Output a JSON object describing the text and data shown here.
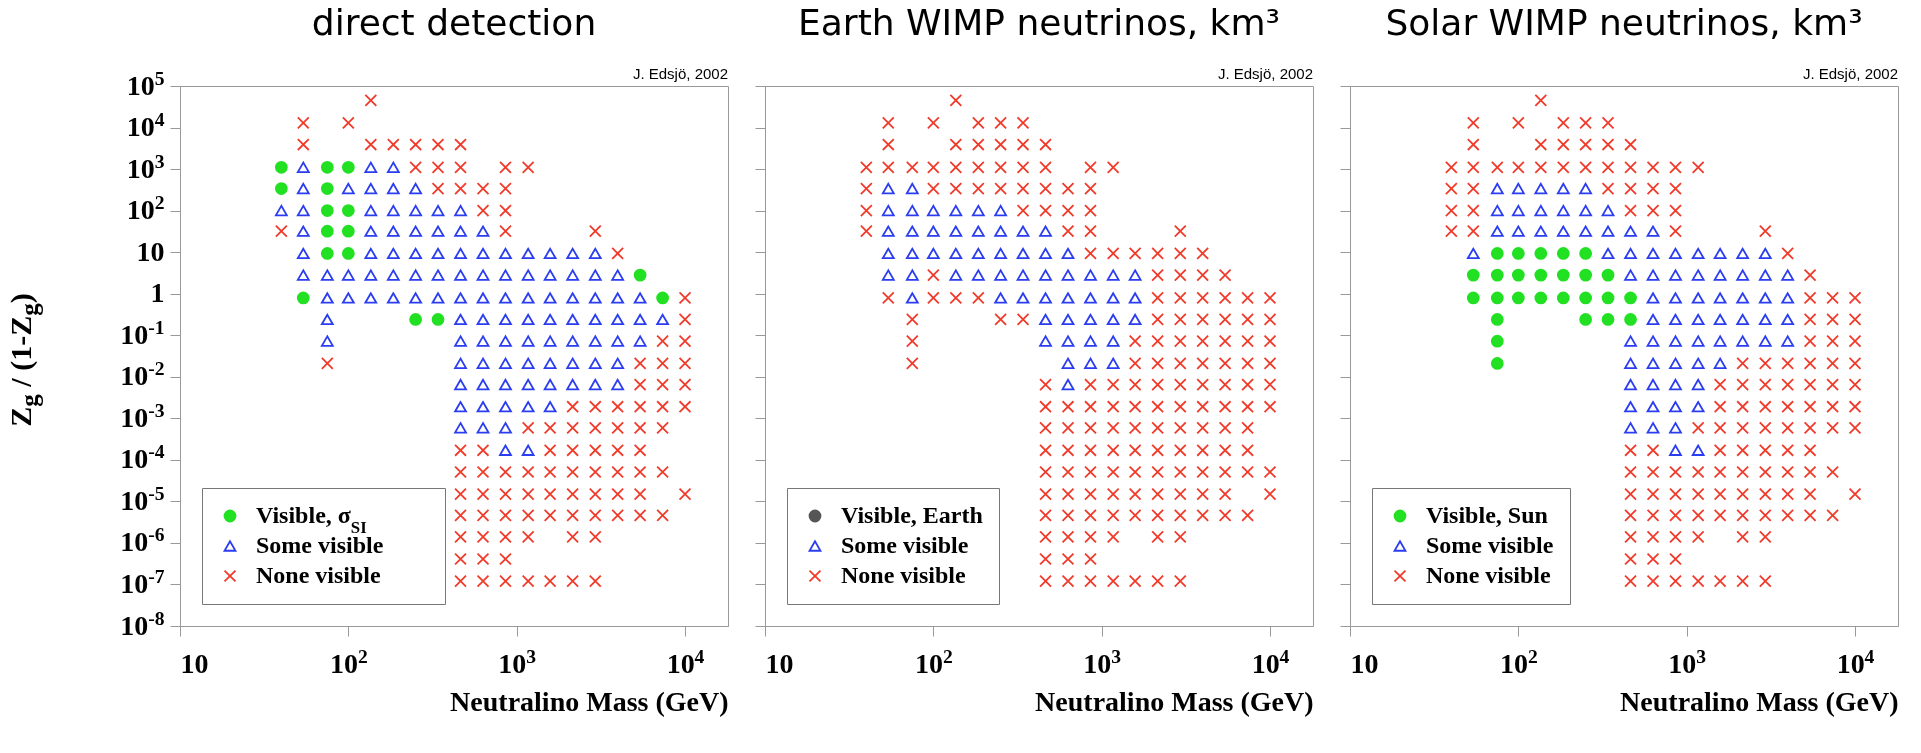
{
  "chart_data": [
    {
      "type": "scatter",
      "title": "direct detection",
      "xlabel": "Neutralino Mass (GeV)",
      "ylabel": "Z$_{g}$ / (1-Z$_{g}$)",
      "annotations": [
        "J. Edsjö, 2002"
      ],
      "log": "xy",
      "legend": "bottom left",
      "xlim": [
        10,
        18000
      ],
      "ylim": [
        1e-08,
        100000
      ],
      "xticks": [
        {
          "value": 10,
          "label": "10"
        },
        {
          "value": 100,
          "label": "10$^{2}$"
        },
        {
          "value": 1000,
          "label": "10$^{3}$"
        },
        {
          "value": 10000,
          "label": "10$^{4}$"
        }
      ],
      "yticks": [
        {
          "value": 1e-08,
          "label": "10$^{-8}$"
        },
        {
          "value": 1e-07,
          "label": "10$^{-7}$"
        },
        {
          "value": 1e-06,
          "label": "10$^{-6}$"
        },
        {
          "value": 1e-05,
          "label": "10$^{-5}$"
        },
        {
          "value": 0.0001,
          "label": "10$^{-4}$"
        },
        {
          "value": 0.001,
          "label": "10$^{-3}$"
        },
        {
          "value": 0.01,
          "label": "10$^{-2}$"
        },
        {
          "value": 0.1,
          "label": "10$^{-1}$"
        },
        1,
        10,
        {
          "value": 100,
          "label": "10$^{2}$"
        },
        {
          "value": 1000,
          "label": "10$^{3}$"
        },
        {
          "value": 10000,
          "label": "10$^{4}$"
        },
        {
          "value": 100000,
          "label": "10$^{5}$"
        }
      ],
      "series": [
        {
          "name": "Visible, σ$_{SI}$",
          "color": "#22e022",
          "marker": "circle",
          "x": [
            40,
            75,
            100,
            40,
            75,
            75,
            100,
            75,
            100,
            75,
            100,
            5410,
            54,
            7360,
            251,
            341
          ],
          "values": [
            1100,
            1100,
            1100,
            340,
            340,
            100,
            100,
            32,
            32,
            9.3,
            9.3,
            2.8,
            0.79,
            0.79,
            0.24,
            0.24
          ]
        },
        {
          "name": "Some visible",
          "color": "#2a3df0",
          "marker": "triangle",
          "x": [
            54,
            136,
            185,
            54,
            100,
            136,
            185,
            251,
            40,
            54,
            136,
            185,
            251,
            341,
            464,
            54,
            136,
            185,
            251,
            341,
            464,
            631,
            54,
            136,
            185,
            251,
            341,
            464,
            631,
            858,
            1170,
            1580,
            2150,
            2930,
            54,
            75,
            100,
            136,
            185,
            251,
            341,
            464,
            631,
            858,
            1170,
            1580,
            2150,
            2930,
            3980,
            75,
            100,
            136,
            185,
            251,
            341,
            464,
            631,
            858,
            1170,
            1580,
            2150,
            2930,
            3980,
            5410,
            75,
            464,
            631,
            858,
            1170,
            1580,
            2150,
            2930,
            3980,
            5410,
            7360,
            75,
            464,
            631,
            858,
            1170,
            1580,
            2150,
            2930,
            3980,
            5410,
            464,
            631,
            858,
            1170,
            1580,
            2150,
            2930,
            3980,
            464,
            631,
            858,
            1170,
            1580,
            2150,
            2930,
            3980,
            464,
            631,
            858,
            1170,
            1580,
            464,
            631,
            858,
            858,
            1170
          ],
          "values": [
            1100,
            1100,
            1100,
            340,
            340,
            340,
            340,
            340,
            100,
            100,
            100,
            100,
            100,
            100,
            100,
            32,
            32,
            32,
            32,
            32,
            32,
            32,
            9.3,
            9.3,
            9.3,
            9.3,
            9.3,
            9.3,
            9.3,
            9.3,
            9.3,
            9.3,
            9.3,
            9.3,
            2.8,
            2.8,
            2.8,
            2.8,
            2.8,
            2.8,
            2.8,
            2.8,
            2.8,
            2.8,
            2.8,
            2.8,
            2.8,
            2.8,
            2.8,
            0.79,
            0.79,
            0.79,
            0.79,
            0.79,
            0.79,
            0.79,
            0.79,
            0.79,
            0.79,
            0.79,
            0.79,
            0.79,
            0.79,
            0.79,
            0.24,
            0.24,
            0.24,
            0.24,
            0.24,
            0.24,
            0.24,
            0.24,
            0.24,
            0.24,
            0.24,
            0.072,
            0.072,
            0.072,
            0.072,
            0.072,
            0.072,
            0.072,
            0.072,
            0.072,
            0.072,
            0.021,
            0.021,
            0.021,
            0.021,
            0.021,
            0.021,
            0.021,
            0.021,
            0.0065,
            0.0065,
            0.0065,
            0.0065,
            0.0065,
            0.0065,
            0.0065,
            0.0065,
            0.0019,
            0.0019,
            0.0019,
            0.0019,
            0.0019,
            0.00059,
            0.00059,
            0.00059,
            0.00017,
            0.00017
          ]
        },
        {
          "name": "None visible",
          "color": "#f03a2a",
          "marker": "cross",
          "x": [
            136,
            54,
            100,
            54,
            136,
            185,
            251,
            341,
            464,
            251,
            341,
            464,
            858,
            1170,
            341,
            464,
            631,
            858,
            631,
            858,
            40,
            858,
            2930,
            3980,
            10000,
            10000,
            7360,
            10000,
            75,
            5410,
            7360,
            10000,
            5410,
            7360,
            10000,
            2150,
            2930,
            3980,
            5410,
            7360,
            10000,
            1170,
            1580,
            2150,
            2930,
            3980,
            5410,
            7360,
            464,
            631,
            1580,
            2150,
            2930,
            3980,
            5410,
            464,
            631,
            858,
            1170,
            1580,
            2150,
            2930,
            3980,
            5410,
            7360,
            464,
            631,
            858,
            1170,
            1580,
            2150,
            2930,
            3980,
            5410,
            10000,
            464,
            631,
            858,
            1170,
            1580,
            2150,
            2930,
            3980,
            5410,
            7360,
            464,
            631,
            858,
            1170,
            2150,
            2930,
            464,
            631,
            858,
            464,
            631,
            858,
            1170,
            1580,
            2150,
            2930
          ],
          "values": [
            45000,
            13000,
            13000,
            3900,
            3900,
            3900,
            3900,
            3900,
            3900,
            1100,
            1100,
            1100,
            1100,
            1100,
            340,
            340,
            340,
            340,
            100,
            100,
            32,
            32,
            32,
            9.3,
            0.79,
            0.24,
            0.072,
            0.072,
            0.021,
            0.021,
            0.021,
            0.021,
            0.0065,
            0.0065,
            0.0065,
            0.0019,
            0.0019,
            0.0019,
            0.0019,
            0.0019,
            0.0019,
            0.00059,
            0.00059,
            0.00059,
            0.00059,
            0.00059,
            0.00059,
            0.00059,
            0.00017,
            0.00017,
            0.00017,
            0.00017,
            0.00017,
            0.00017,
            0.00017,
            5.1e-05,
            5.1e-05,
            5.1e-05,
            5.1e-05,
            5.1e-05,
            5.1e-05,
            5.1e-05,
            5.1e-05,
            5.1e-05,
            5.1e-05,
            1.5e-05,
            1.5e-05,
            1.5e-05,
            1.5e-05,
            1.5e-05,
            1.5e-05,
            1.5e-05,
            1.5e-05,
            1.5e-05,
            1.5e-05,
            4.6e-06,
            4.6e-06,
            4.6e-06,
            4.6e-06,
            4.6e-06,
            4.6e-06,
            4.6e-06,
            4.6e-06,
            4.6e-06,
            4.6e-06,
            1.4e-06,
            1.4e-06,
            1.4e-06,
            1.4e-06,
            1.4e-06,
            1.4e-06,
            4.1e-07,
            4.1e-07,
            4.1e-07,
            1.2e-07,
            1.2e-07,
            1.2e-07,
            1.2e-07,
            1.2e-07,
            1.2e-07,
            1.2e-07
          ]
        }
      ]
    },
    {
      "type": "scatter",
      "title": "Earth WIMP neutrinos, km³",
      "xlabel": "Neutralino Mass (GeV)",
      "annotations": [
        "J. Edsjö, 2002"
      ],
      "log": "xy",
      "legend": "bottom left",
      "tick_labels": "x",
      "xlim": [
        10,
        18000
      ],
      "ylim": [
        1e-08,
        100000
      ],
      "xticks": [
        10,
        {
          "value": 100,
          "label": "10$^{2}$"
        },
        {
          "value": 1000,
          "label": "10$^{3}$"
        },
        {
          "value": 10000,
          "label": "10$^{4}$"
        }
      ],
      "yticks": [
        1e-08,
        1e-07,
        1e-06,
        1e-05,
        0.0001,
        0.001,
        0.01,
        0.1,
        1,
        10,
        100,
        1000,
        10000,
        100000
      ],
      "series": [
        {
          "name": "Visible, Earth",
          "color": "#555555",
          "marker": "circle"
        },
        {
          "name": "Some visible",
          "color": "#2a3df0",
          "marker": "triangle",
          "x": [
            54,
            75,
            54,
            75,
            100,
            136,
            185,
            251,
            54,
            75,
            100,
            136,
            185,
            251,
            341,
            464,
            54,
            75,
            100,
            136,
            185,
            251,
            341,
            464,
            631,
            54,
            75,
            136,
            185,
            251,
            341,
            464,
            631,
            858,
            1170,
            1580,
            75,
            251,
            341,
            464,
            631,
            858,
            1170,
            1580,
            464,
            631,
            858,
            1170,
            1580,
            464,
            631,
            858,
            1170,
            631,
            858,
            1170,
            631
          ],
          "values": [
            340,
            340,
            100,
            100,
            100,
            100,
            100,
            100,
            32,
            32,
            32,
            32,
            32,
            32,
            32,
            32,
            9.3,
            9.3,
            9.3,
            9.3,
            9.3,
            9.3,
            9.3,
            9.3,
            9.3,
            2.8,
            2.8,
            2.8,
            2.8,
            2.8,
            2.8,
            2.8,
            2.8,
            2.8,
            2.8,
            2.8,
            0.79,
            0.79,
            0.79,
            0.79,
            0.79,
            0.79,
            0.79,
            0.79,
            0.24,
            0.24,
            0.24,
            0.24,
            0.24,
            0.072,
            0.072,
            0.072,
            0.072,
            0.021,
            0.021,
            0.021,
            0.0065
          ]
        },
        {
          "name": "None visible",
          "color": "#f03a2a",
          "marker": "cross",
          "x": [
            136,
            54,
            100,
            185,
            251,
            341,
            54,
            136,
            185,
            251,
            341,
            464,
            40,
            54,
            75,
            100,
            136,
            185,
            251,
            341,
            464,
            858,
            1170,
            40,
            100,
            136,
            185,
            251,
            341,
            464,
            631,
            858,
            40,
            341,
            464,
            631,
            858,
            40,
            631,
            858,
            2930,
            858,
            1170,
            1580,
            2150,
            2930,
            3980,
            100,
            2150,
            2930,
            3980,
            5410,
            54,
            100,
            136,
            185,
            2150,
            2930,
            3980,
            5410,
            7360,
            10000,
            75,
            251,
            341,
            2150,
            2930,
            3980,
            5410,
            7360,
            10000,
            75,
            1580,
            2150,
            2930,
            3980,
            5410,
            7360,
            10000,
            75,
            1580,
            2150,
            2930,
            3980,
            5410,
            7360,
            10000,
            464,
            858,
            1170,
            1580,
            2150,
            2930,
            3980,
            5410,
            7360,
            10000,
            464,
            631,
            858,
            1170,
            1580,
            2150,
            2930,
            3980,
            5410,
            7360,
            10000,
            464,
            631,
            858,
            1170,
            1580,
            2150,
            2930,
            3980,
            5410,
            7360,
            464,
            631,
            858,
            1170,
            1580,
            2150,
            2930,
            3980,
            5410,
            7360,
            464,
            631,
            858,
            1170,
            1580,
            2150,
            2930,
            3980,
            5410,
            7360,
            10000,
            464,
            631,
            858,
            1170,
            1580,
            2150,
            2930,
            3980,
            5410,
            10000,
            464,
            631,
            858,
            1170,
            1580,
            2150,
            2930,
            3980,
            5410,
            7360,
            464,
            631,
            858,
            1170,
            2150,
            2930,
            464,
            631,
            858,
            464,
            631,
            858,
            1170,
            1580,
            2150,
            2930
          ],
          "values": [
            45000,
            13000,
            13000,
            13000,
            13000,
            13000,
            3900,
            3900,
            3900,
            3900,
            3900,
            3900,
            1100,
            1100,
            1100,
            1100,
            1100,
            1100,
            1100,
            1100,
            1100,
            1100,
            1100,
            340,
            340,
            340,
            340,
            340,
            340,
            340,
            340,
            340,
            100,
            100,
            100,
            100,
            100,
            32,
            32,
            32,
            32,
            9.3,
            9.3,
            9.3,
            9.3,
            9.3,
            9.3,
            2.8,
            2.8,
            2.8,
            2.8,
            2.8,
            0.79,
            0.79,
            0.79,
            0.79,
            0.79,
            0.79,
            0.79,
            0.79,
            0.79,
            0.79,
            0.24,
            0.24,
            0.24,
            0.24,
            0.24,
            0.24,
            0.24,
            0.24,
            0.24,
            0.072,
            0.072,
            0.072,
            0.072,
            0.072,
            0.072,
            0.072,
            0.072,
            0.021,
            0.021,
            0.021,
            0.021,
            0.021,
            0.021,
            0.021,
            0.021,
            0.0065,
            0.0065,
            0.0065,
            0.0065,
            0.0065,
            0.0065,
            0.0065,
            0.0065,
            0.0065,
            0.0065,
            0.0019,
            0.0019,
            0.0019,
            0.0019,
            0.0019,
            0.0019,
            0.0019,
            0.0019,
            0.0019,
            0.0019,
            0.0019,
            0.00059,
            0.00059,
            0.00059,
            0.00059,
            0.00059,
            0.00059,
            0.00059,
            0.00059,
            0.00059,
            0.00059,
            0.00017,
            0.00017,
            0.00017,
            0.00017,
            0.00017,
            0.00017,
            0.00017,
            0.00017,
            0.00017,
            0.00017,
            5.1e-05,
            5.1e-05,
            5.1e-05,
            5.1e-05,
            5.1e-05,
            5.1e-05,
            5.1e-05,
            5.1e-05,
            5.1e-05,
            5.1e-05,
            5.1e-05,
            1.5e-05,
            1.5e-05,
            1.5e-05,
            1.5e-05,
            1.5e-05,
            1.5e-05,
            1.5e-05,
            1.5e-05,
            1.5e-05,
            1.5e-05,
            4.6e-06,
            4.6e-06,
            4.6e-06,
            4.6e-06,
            4.6e-06,
            4.6e-06,
            4.6e-06,
            4.6e-06,
            4.6e-06,
            4.6e-06,
            1.4e-06,
            1.4e-06,
            1.4e-06,
            1.4e-06,
            1.4e-06,
            1.4e-06,
            4.1e-07,
            4.1e-07,
            4.1e-07,
            1.2e-07,
            1.2e-07,
            1.2e-07,
            1.2e-07,
            1.2e-07,
            1.2e-07,
            1.2e-07
          ]
        }
      ]
    },
    {
      "type": "scatter",
      "title": "Solar WIMP neutrinos, km³",
      "xlabel": "Neutralino Mass (GeV)",
      "annotations": [
        "J. Edsjö, 2002"
      ],
      "log": "xy",
      "legend": "bottom left",
      "tick_labels": "x",
      "xlim": [
        10,
        18000
      ],
      "ylim": [
        1e-08,
        100000
      ],
      "xticks": [
        10,
        {
          "value": 100,
          "label": "10$^{2}$"
        },
        {
          "value": 1000,
          "label": "10$^{3}$"
        },
        {
          "value": 10000,
          "label": "10$^{4}$"
        }
      ],
      "yticks": [
        1e-08,
        1e-07,
        1e-06,
        1e-05,
        0.0001,
        0.001,
        0.01,
        0.1,
        1,
        10,
        100,
        1000,
        10000,
        100000
      ],
      "series": [
        {
          "name": "Visible, Sun",
          "color": "#22e022",
          "marker": "circle",
          "x": [
            75,
            100,
            136,
            185,
            251,
            54,
            75,
            100,
            136,
            185,
            251,
            341,
            54,
            75,
            100,
            136,
            185,
            251,
            341,
            464,
            75,
            251,
            341,
            464,
            75,
            75
          ],
          "values": [
            9.3,
            9.3,
            9.3,
            9.3,
            9.3,
            2.8,
            2.8,
            2.8,
            2.8,
            2.8,
            2.8,
            2.8,
            0.79,
            0.79,
            0.79,
            0.79,
            0.79,
            0.79,
            0.79,
            0.79,
            0.24,
            0.24,
            0.24,
            0.24,
            0.072,
            0.021
          ]
        },
        {
          "name": "Some visible",
          "color": "#2a3df0",
          "marker": "triangle",
          "x": [
            75,
            100,
            136,
            185,
            251,
            75,
            100,
            136,
            185,
            251,
            341,
            75,
            100,
            136,
            185,
            251,
            341,
            464,
            631,
            54,
            341,
            464,
            631,
            858,
            1170,
            1580,
            2150,
            2930,
            464,
            631,
            858,
            1170,
            1580,
            2150,
            2930,
            3980,
            631,
            858,
            1170,
            1580,
            2150,
            2930,
            3980,
            631,
            858,
            1170,
            1580,
            2150,
            2930,
            3980,
            464,
            631,
            858,
            1170,
            1580,
            2150,
            2930,
            3980,
            464,
            631,
            858,
            1170,
            1580,
            464,
            631,
            858,
            1170,
            464,
            631,
            858,
            1170,
            464,
            631,
            858,
            858,
            1170
          ],
          "values": [
            340,
            340,
            340,
            340,
            340,
            100,
            100,
            100,
            100,
            100,
            100,
            32,
            32,
            32,
            32,
            32,
            32,
            32,
            32,
            9.3,
            9.3,
            9.3,
            9.3,
            9.3,
            9.3,
            9.3,
            9.3,
            9.3,
            2.8,
            2.8,
            2.8,
            2.8,
            2.8,
            2.8,
            2.8,
            2.8,
            0.79,
            0.79,
            0.79,
            0.79,
            0.79,
            0.79,
            0.79,
            0.24,
            0.24,
            0.24,
            0.24,
            0.24,
            0.24,
            0.24,
            0.072,
            0.072,
            0.072,
            0.072,
            0.072,
            0.072,
            0.072,
            0.072,
            0.021,
            0.021,
            0.021,
            0.021,
            0.021,
            0.0065,
            0.0065,
            0.0065,
            0.0065,
            0.0019,
            0.0019,
            0.0019,
            0.0019,
            0.00059,
            0.00059,
            0.00059,
            0.00017,
            0.00017
          ]
        },
        {
          "name": "None visible",
          "color": "#f03a2a",
          "marker": "cross",
          "x": [
            136,
            54,
            100,
            185,
            251,
            341,
            54,
            136,
            185,
            251,
            341,
            464,
            40,
            54,
            75,
            100,
            136,
            185,
            251,
            341,
            464,
            631,
            858,
            1170,
            40,
            54,
            341,
            464,
            631,
            858,
            40,
            54,
            464,
            631,
            858,
            40,
            54,
            858,
            2930,
            3980,
            5410,
            5410,
            7360,
            10000,
            5410,
            7360,
            10000,
            5410,
            7360,
            10000,
            2150,
            2930,
            3980,
            5410,
            7360,
            10000,
            1580,
            2150,
            2930,
            3980,
            5410,
            7360,
            10000,
            1580,
            2150,
            2930,
            3980,
            5410,
            7360,
            10000,
            1170,
            1580,
            2150,
            2930,
            3980,
            5410,
            7360,
            10000,
            464,
            631,
            1580,
            2150,
            2930,
            3980,
            5410,
            464,
            631,
            858,
            1170,
            1580,
            2150,
            2930,
            3980,
            5410,
            7360,
            464,
            631,
            858,
            1170,
            1580,
            2150,
            2930,
            3980,
            5410,
            10000,
            464,
            631,
            858,
            1170,
            1580,
            2150,
            2930,
            3980,
            5410,
            7360,
            464,
            631,
            858,
            1170,
            2150,
            2930,
            464,
            631,
            858,
            464,
            631,
            858,
            1170,
            1580,
            2150,
            2930
          ],
          "values": [
            45000,
            13000,
            13000,
            13000,
            13000,
            13000,
            3900,
            3900,
            3900,
            3900,
            3900,
            3900,
            1100,
            1100,
            1100,
            1100,
            1100,
            1100,
            1100,
            1100,
            1100,
            1100,
            1100,
            1100,
            340,
            340,
            340,
            340,
            340,
            340,
            100,
            100,
            100,
            100,
            100,
            32,
            32,
            32,
            32,
            9.3,
            2.8,
            0.79,
            0.79,
            0.79,
            0.24,
            0.24,
            0.24,
            0.072,
            0.072,
            0.072,
            0.021,
            0.021,
            0.021,
            0.021,
            0.021,
            0.021,
            0.0065,
            0.0065,
            0.0065,
            0.0065,
            0.0065,
            0.0065,
            0.0065,
            0.0019,
            0.0019,
            0.0019,
            0.0019,
            0.0019,
            0.0019,
            0.0019,
            0.00059,
            0.00059,
            0.00059,
            0.00059,
            0.00059,
            0.00059,
            0.00059,
            0.00059,
            0.00017,
            0.00017,
            0.00017,
            0.00017,
            0.00017,
            0.00017,
            0.00017,
            5.1e-05,
            5.1e-05,
            5.1e-05,
            5.1e-05,
            5.1e-05,
            5.1e-05,
            5.1e-05,
            5.1e-05,
            5.1e-05,
            5.1e-05,
            1.5e-05,
            1.5e-05,
            1.5e-05,
            1.5e-05,
            1.5e-05,
            1.5e-05,
            1.5e-05,
            1.5e-05,
            1.5e-05,
            1.5e-05,
            4.6e-06,
            4.6e-06,
            4.6e-06,
            4.6e-06,
            4.6e-06,
            4.6e-06,
            4.6e-06,
            4.6e-06,
            4.6e-06,
            4.6e-06,
            1.4e-06,
            1.4e-06,
            1.4e-06,
            1.4e-06,
            1.4e-06,
            1.4e-06,
            4.1e-07,
            4.1e-07,
            4.1e-07,
            1.2e-07,
            1.2e-07,
            1.2e-07,
            1.2e-07,
            1.2e-07,
            1.2e-07,
            1.2e-07
          ]
        }
      ]
    }
  ]
}
